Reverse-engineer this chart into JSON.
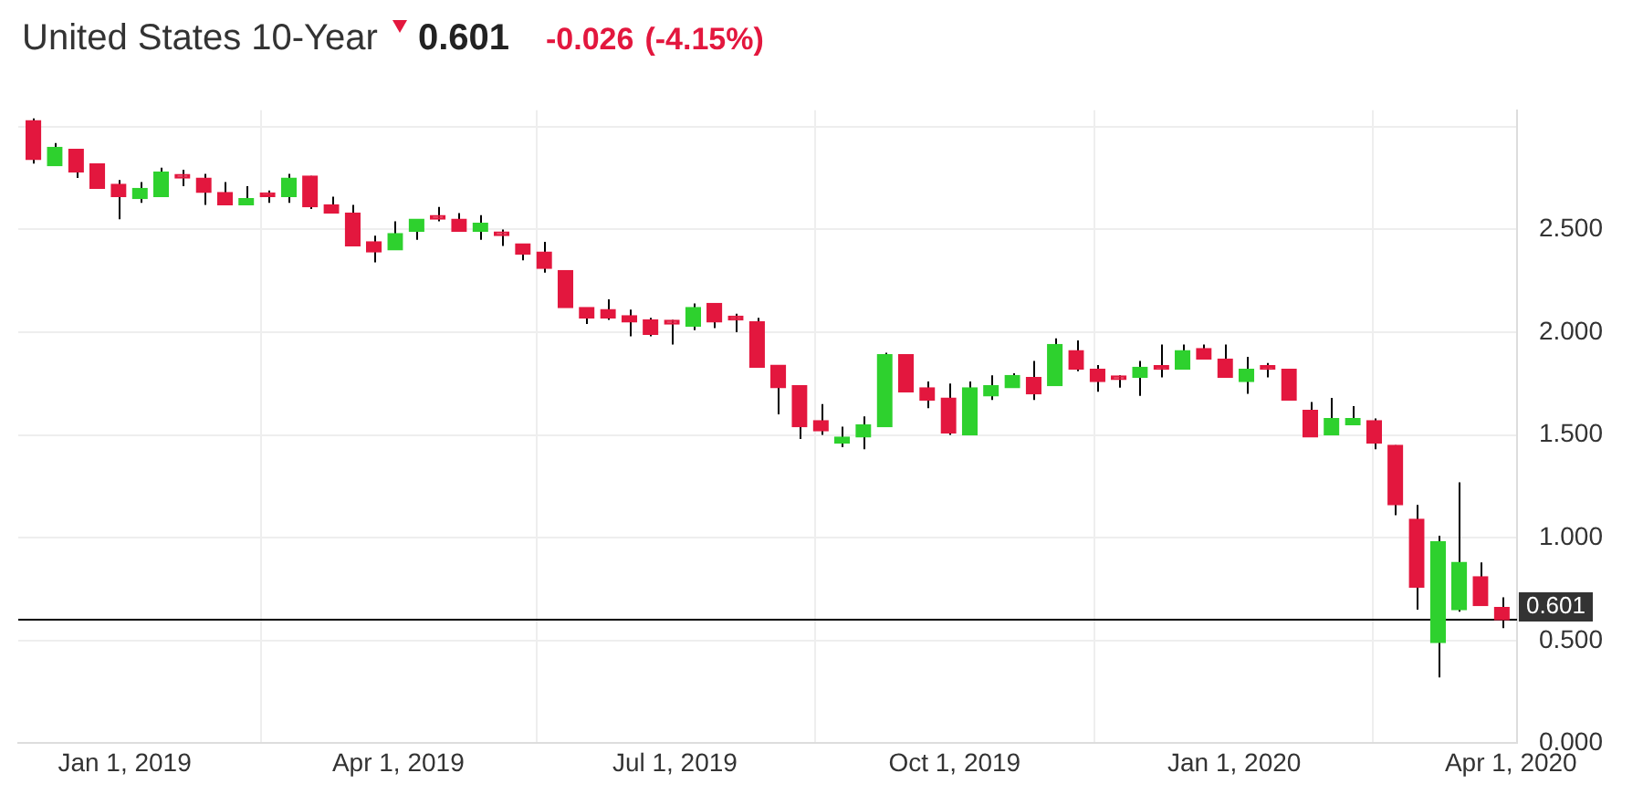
{
  "chart_data": {
    "type": "candlestick",
    "title": "United States 10-Year",
    "annotations": [
      "0.601",
      "-0.026",
      "(-4.15%)"
    ],
    "x": [
      "2018-12-02",
      "2018-12-09",
      "2018-12-16",
      "2018-12-23",
      "2018-12-30",
      "2019-01-06",
      "2019-01-13",
      "2019-01-20",
      "2019-01-27",
      "2019-02-03",
      "2019-02-10",
      "2019-02-17",
      "2019-02-24",
      "2019-03-03",
      "2019-03-10",
      "2019-03-17",
      "2019-03-24",
      "2019-03-31",
      "2019-04-07",
      "2019-04-14",
      "2019-04-21",
      "2019-04-28",
      "2019-05-05",
      "2019-05-12",
      "2019-05-19",
      "2019-05-26",
      "2019-06-02",
      "2019-06-09",
      "2019-06-16",
      "2019-06-23",
      "2019-06-30",
      "2019-07-07",
      "2019-07-14",
      "2019-07-21",
      "2019-07-28",
      "2019-08-04",
      "2019-08-11",
      "2019-08-18",
      "2019-08-25",
      "2019-09-01",
      "2019-09-08",
      "2019-09-15",
      "2019-09-22",
      "2019-09-29",
      "2019-10-06",
      "2019-10-13",
      "2019-10-20",
      "2019-10-27",
      "2019-11-03",
      "2019-11-10",
      "2019-11-17",
      "2019-11-24",
      "2019-12-01",
      "2019-12-08",
      "2019-12-15",
      "2019-12-22",
      "2019-12-29",
      "2020-01-05",
      "2020-01-12",
      "2020-01-19",
      "2020-01-26",
      "2020-02-02",
      "2020-02-09",
      "2020-02-16",
      "2020-02-23",
      "2020-03-01",
      "2020-03-08",
      "2020-03-15",
      "2020-03-22",
      "2020-03-29"
    ],
    "ohlc": [
      [
        3.03,
        3.04,
        2.82,
        2.84
      ],
      [
        2.81,
        2.92,
        2.81,
        2.9
      ],
      [
        2.89,
        2.89,
        2.75,
        2.78
      ],
      [
        2.82,
        2.82,
        2.7,
        2.7
      ],
      [
        2.72,
        2.74,
        2.55,
        2.66
      ],
      [
        2.65,
        2.73,
        2.63,
        2.7
      ],
      [
        2.66,
        2.8,
        2.66,
        2.78
      ],
      [
        2.76,
        2.79,
        2.71,
        2.75
      ],
      [
        2.75,
        2.77,
        2.62,
        2.68
      ],
      [
        2.68,
        2.73,
        2.62,
        2.62
      ],
      [
        2.62,
        2.71,
        2.62,
        2.65
      ],
      [
        2.67,
        2.69,
        2.63,
        2.66
      ],
      [
        2.66,
        2.77,
        2.63,
        2.75
      ],
      [
        2.76,
        2.76,
        2.6,
        2.61
      ],
      [
        2.62,
        2.66,
        2.58,
        2.58
      ],
      [
        2.58,
        2.62,
        2.42,
        2.42
      ],
      [
        2.44,
        2.47,
        2.34,
        2.39
      ],
      [
        2.4,
        2.54,
        2.4,
        2.48
      ],
      [
        2.49,
        2.55,
        2.45,
        2.55
      ],
      [
        2.56,
        2.61,
        2.54,
        2.55
      ],
      [
        2.55,
        2.58,
        2.49,
        2.49
      ],
      [
        2.49,
        2.57,
        2.45,
        2.53
      ],
      [
        2.48,
        2.5,
        2.42,
        2.47
      ],
      [
        2.43,
        2.43,
        2.35,
        2.38
      ],
      [
        2.39,
        2.44,
        2.29,
        2.31
      ],
      [
        2.3,
        2.3,
        2.12,
        2.12
      ],
      [
        2.12,
        2.12,
        2.04,
        2.07
      ],
      [
        2.11,
        2.16,
        2.06,
        2.07
      ],
      [
        2.08,
        2.11,
        1.98,
        2.05
      ],
      [
        2.06,
        2.07,
        1.98,
        1.99
      ],
      [
        2.05,
        2.06,
        1.94,
        2.04
      ],
      [
        2.03,
        2.14,
        2.01,
        2.12
      ],
      [
        2.14,
        2.14,
        2.02,
        2.05
      ],
      [
        2.07,
        2.09,
        2.0,
        2.06
      ],
      [
        2.05,
        2.07,
        1.83,
        1.83
      ],
      [
        1.84,
        1.84,
        1.6,
        1.73
      ],
      [
        1.74,
        1.74,
        1.48,
        1.54
      ],
      [
        1.57,
        1.65,
        1.5,
        1.52
      ],
      [
        1.46,
        1.54,
        1.44,
        1.49
      ],
      [
        1.49,
        1.59,
        1.43,
        1.55
      ],
      [
        1.54,
        1.9,
        1.54,
        1.89
      ],
      [
        1.89,
        1.89,
        1.71,
        1.71
      ],
      [
        1.73,
        1.76,
        1.63,
        1.67
      ],
      [
        1.68,
        1.75,
        1.5,
        1.51
      ],
      [
        1.5,
        1.76,
        1.5,
        1.73
      ],
      [
        1.69,
        1.79,
        1.67,
        1.74
      ],
      [
        1.73,
        1.8,
        1.73,
        1.79
      ],
      [
        1.78,
        1.86,
        1.67,
        1.7
      ],
      [
        1.74,
        1.97,
        1.74,
        1.94
      ],
      [
        1.91,
        1.96,
        1.81,
        1.82
      ],
      [
        1.82,
        1.84,
        1.71,
        1.76
      ],
      [
        1.78,
        1.79,
        1.73,
        1.77
      ],
      [
        1.78,
        1.86,
        1.69,
        1.83
      ],
      [
        1.83,
        1.94,
        1.78,
        1.82
      ],
      [
        1.82,
        1.94,
        1.82,
        1.91
      ],
      [
        1.92,
        1.94,
        1.87,
        1.87
      ],
      [
        1.87,
        1.94,
        1.78,
        1.78
      ],
      [
        1.76,
        1.88,
        1.7,
        1.82
      ],
      [
        1.83,
        1.85,
        1.78,
        1.82
      ],
      [
        1.82,
        1.82,
        1.67,
        1.67
      ],
      [
        1.62,
        1.66,
        1.49,
        1.49
      ],
      [
        1.5,
        1.68,
        1.5,
        1.58
      ],
      [
        1.55,
        1.64,
        1.55,
        1.58
      ],
      [
        1.57,
        1.58,
        1.43,
        1.46
      ],
      [
        1.45,
        1.45,
        1.11,
        1.16
      ],
      [
        1.09,
        1.16,
        0.65,
        0.76
      ],
      [
        0.49,
        1.01,
        0.32,
        0.98
      ],
      [
        0.65,
        1.27,
        0.64,
        0.88
      ],
      [
        0.81,
        0.88,
        0.67,
        0.67
      ],
      [
        0.66,
        0.71,
        0.56,
        0.601
      ]
    ],
    "colors": [
      "#e3173e",
      "#2ed12e",
      "#e3173e",
      "#e3173e",
      "#e3173e",
      "#2ed12e",
      "#2ed12e",
      "#e3173e",
      "#e3173e",
      "#e3173e",
      "#2ed12e",
      "#e3173e",
      "#2ed12e",
      "#e3173e",
      "#e3173e",
      "#e3173e",
      "#e3173e",
      "#2ed12e",
      "#2ed12e",
      "#e3173e",
      "#e3173e",
      "#2ed12e",
      "#e3173e",
      "#e3173e",
      "#e3173e",
      "#e3173e",
      "#e3173e",
      "#e3173e",
      "#e3173e",
      "#e3173e",
      "#e3173e",
      "#2ed12e",
      "#e3173e",
      "#e3173e",
      "#e3173e",
      "#e3173e",
      "#e3173e",
      "#e3173e",
      "#2ed12e",
      "#2ed12e",
      "#2ed12e",
      "#e3173e",
      "#e3173e",
      "#e3173e",
      "#2ed12e",
      "#2ed12e",
      "#2ed12e",
      "#e3173e",
      "#2ed12e",
      "#e3173e",
      "#e3173e",
      "#e3173e",
      "#2ed12e",
      "#e3173e",
      "#2ed12e",
      "#e3173e",
      "#e3173e",
      "#2ed12e",
      "#e3173e",
      "#e3173e",
      "#e3173e",
      "#2ed12e",
      "#2ed12e",
      "#e3173e",
      "#e3173e",
      "#e3173e",
      "#2ed12e",
      "#2ed12e",
      "#e3173e",
      "#e3173e"
    ],
    "xlim": [
      "2018-11-27",
      "2020-04-03"
    ],
    "xticks": [
      {
        "value": "2019-01-01",
        "label": "Jan 1, 2019"
      },
      {
        "value": "2019-04-01",
        "label": "Apr 1, 2019"
      },
      {
        "value": "2019-07-01",
        "label": "Jul 1, 2019"
      },
      {
        "value": "2019-10-01",
        "label": "Oct 1, 2019"
      },
      {
        "value": "2020-01-01",
        "label": "Jan 1, 2020"
      },
      {
        "value": "2020-04-01",
        "label": "Apr 1, 2020"
      }
    ],
    "ylim": [
      0,
      3.08
    ],
    "yticks": [
      {
        "value": 0,
        "label": "0.000"
      },
      {
        "value": 0.5,
        "label": "0.500"
      },
      {
        "value": 1,
        "label": "1.000"
      },
      {
        "value": 1.5,
        "label": "1.500"
      },
      {
        "value": 2,
        "label": "2.000"
      },
      {
        "value": 2.5,
        "label": "2.500"
      },
      {
        "value": 3,
        "label": null
      }
    ],
    "ref_lines": [
      {
        "axis": "y",
        "value": 0.601,
        "label": "0.601",
        "color": "#000000"
      }
    ],
    "grid": true
  }
}
